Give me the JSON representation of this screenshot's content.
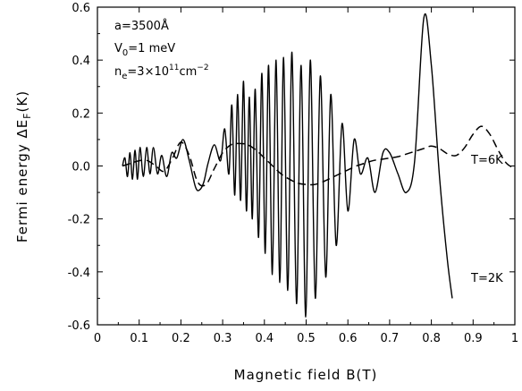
{
  "chart_data": {
    "type": "line",
    "xlabel": "Magnetic field  B(T)",
    "ylabel": "Fermi energy  ΔE",
    "ylabel_sub": "F",
    "ylabel_unit": "(K)",
    "xlim": [
      0,
      1
    ],
    "ylim": [
      -0.6,
      0.6
    ],
    "x_ticks": [
      0,
      0.1,
      0.2,
      0.3,
      0.4,
      0.5,
      0.6,
      0.7,
      0.8,
      0.9,
      1
    ],
    "x_tick_labels": [
      "0",
      "0.1",
      "0.2",
      "0.3",
      "0.4",
      "0.5",
      "0.6",
      "0.7",
      "0.8",
      "0.9",
      "1"
    ],
    "y_ticks": [
      -0.6,
      -0.4,
      -0.2,
      0.0,
      0.2,
      0.4,
      0.6
    ],
    "y_tick_labels": [
      "-0.6",
      "-0.4",
      "-0.2",
      "0.0",
      "0.2",
      "0.4",
      "0.6"
    ],
    "grid": false,
    "legend": "none",
    "parameters": {
      "a": "a=3500Å",
      "v0_main": "V",
      "v0_sub": "0",
      "v0_rest": "=1 meV",
      "n_main": "n",
      "n_sub": "e",
      "n_mid": "=3×10",
      "n_sup": "11",
      "n_rest": "cm"
    },
    "series": [
      {
        "name": "T=2K",
        "style": "solid",
        "x": [
          0.06,
          0.066,
          0.072,
          0.078,
          0.084,
          0.09,
          0.096,
          0.102,
          0.11,
          0.118,
          0.126,
          0.134,
          0.144,
          0.154,
          0.166,
          0.178,
          0.19,
          0.205,
          0.22,
          0.235,
          0.245,
          0.255,
          0.265,
          0.28,
          0.295,
          0.305,
          0.315,
          0.322,
          0.329,
          0.336,
          0.343,
          0.35,
          0.357,
          0.364,
          0.371,
          0.378,
          0.386,
          0.394,
          0.402,
          0.41,
          0.419,
          0.428,
          0.437,
          0.446,
          0.456,
          0.466,
          0.477,
          0.488,
          0.499,
          0.51,
          0.522,
          0.534,
          0.547,
          0.559,
          0.572,
          0.586,
          0.6,
          0.615,
          0.63,
          0.648,
          0.665,
          0.684,
          0.7,
          0.72,
          0.74,
          0.76,
          0.782,
          0.8,
          0.82,
          0.838,
          0.85
        ],
        "y": [
          0.0,
          0.03,
          -0.04,
          0.05,
          -0.05,
          0.06,
          -0.05,
          0.07,
          -0.04,
          0.07,
          -0.03,
          0.07,
          -0.03,
          0.04,
          -0.04,
          0.05,
          0.03,
          0.1,
          0.02,
          -0.08,
          -0.09,
          -0.06,
          0.01,
          0.08,
          0.02,
          0.14,
          -0.03,
          0.23,
          -0.11,
          0.27,
          -0.13,
          0.32,
          -0.17,
          0.26,
          -0.2,
          0.29,
          -0.27,
          0.35,
          -0.33,
          0.38,
          -0.41,
          0.4,
          -0.44,
          0.41,
          -0.47,
          0.43,
          -0.52,
          0.38,
          -0.57,
          0.4,
          -0.5,
          0.34,
          -0.42,
          0.27,
          -0.3,
          0.16,
          -0.17,
          0.1,
          -0.03,
          0.03,
          -0.1,
          0.05,
          0.05,
          -0.03,
          -0.1,
          0.02,
          0.56,
          0.38,
          -0.05,
          -0.35,
          -0.5
        ]
      },
      {
        "name": "T=6K",
        "style": "dashed",
        "x": [
          0.06,
          0.08,
          0.1,
          0.12,
          0.14,
          0.16,
          0.18,
          0.2,
          0.22,
          0.24,
          0.26,
          0.28,
          0.3,
          0.32,
          0.34,
          0.36,
          0.38,
          0.4,
          0.42,
          0.44,
          0.46,
          0.48,
          0.5,
          0.52,
          0.54,
          0.56,
          0.58,
          0.6,
          0.62,
          0.64,
          0.66,
          0.68,
          0.7,
          0.72,
          0.74,
          0.76,
          0.78,
          0.8,
          0.82,
          0.84,
          0.86,
          0.88,
          0.9,
          0.92,
          0.94,
          0.96,
          0.98,
          1.0
        ],
        "y": [
          0.0,
          0.01,
          0.02,
          0.02,
          0.0,
          -0.02,
          0.03,
          0.09,
          0.04,
          -0.06,
          -0.07,
          -0.01,
          0.05,
          0.08,
          0.085,
          0.08,
          0.06,
          0.03,
          0.0,
          -0.03,
          -0.05,
          -0.065,
          -0.07,
          -0.07,
          -0.06,
          -0.045,
          -0.03,
          -0.015,
          0.0,
          0.01,
          0.02,
          0.025,
          0.03,
          0.035,
          0.045,
          0.055,
          0.065,
          0.075,
          0.065,
          0.045,
          0.04,
          0.07,
          0.12,
          0.15,
          0.12,
          0.06,
          0.01,
          -0.01
        ]
      }
    ],
    "annotations": [
      "T=6K",
      "T=2K"
    ]
  }
}
